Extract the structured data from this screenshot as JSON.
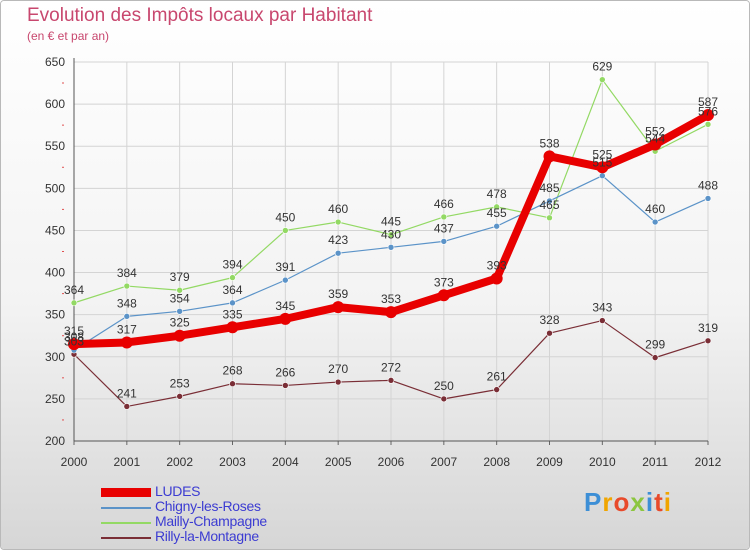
{
  "title": "Evolution des Impôts locaux par Habitant",
  "subtitle": "(en € et par an)",
  "logo": "Proxiti",
  "chart_data": {
    "type": "line",
    "title": "Evolution des Impôts locaux par Habitant",
    "subtitle": "(en € et par an)",
    "xlabel": "",
    "ylabel": "",
    "x": [
      "2000",
      "2001",
      "2002",
      "2003",
      "2004",
      "2005",
      "2006",
      "2007",
      "2008",
      "2009",
      "2010",
      "2011",
      "2012"
    ],
    "ylim": [
      200,
      650
    ],
    "yticks": [
      "200",
      "250",
      "300",
      "350",
      "400",
      "450",
      "500",
      "550",
      "600",
      "650"
    ],
    "grid": true,
    "legend_position": "bottom-left",
    "series": [
      {
        "name": "LUDES",
        "color": "#e80000",
        "width": 8,
        "values": [
          315,
          317,
          325,
          335,
          345,
          359,
          353,
          373,
          393,
          538,
          525,
          552,
          587
        ]
      },
      {
        "name": "Chigny-les-Roses",
        "color": "#5b93c8",
        "width": 1.2,
        "values": [
          308,
          348,
          354,
          364,
          391,
          423,
          430,
          437,
          455,
          485,
          515,
          460,
          488
        ]
      },
      {
        "name": "Mailly-Champagne",
        "color": "#93d964",
        "width": 1.2,
        "values": [
          364,
          384,
          379,
          394,
          450,
          460,
          445,
          466,
          478,
          465,
          629,
          544,
          576
        ]
      },
      {
        "name": "Rilly-la-Montagne",
        "color": "#7a2e36",
        "width": 1.2,
        "values": [
          303,
          241,
          253,
          268,
          266,
          270,
          272,
          250,
          261,
          328,
          343,
          299,
          319
        ]
      }
    ]
  }
}
